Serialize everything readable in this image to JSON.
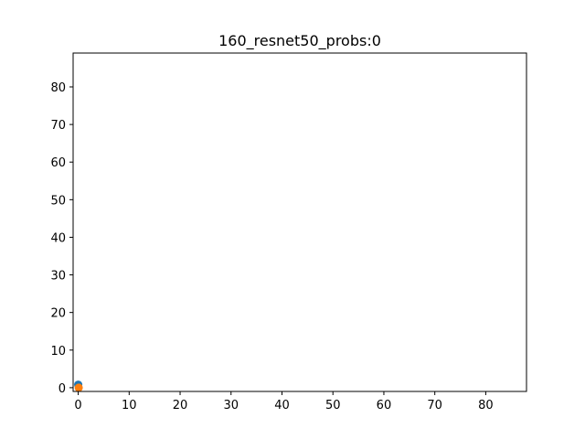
{
  "chart_data": {
    "type": "scatter",
    "title": "160_resnet50_probs:0",
    "xlabel": "",
    "ylabel": "",
    "xlim": [
      -1,
      88
    ],
    "ylim": [
      -1,
      89
    ],
    "xticks": [
      0,
      10,
      20,
      30,
      40,
      50,
      60,
      70,
      80
    ],
    "yticks": [
      0,
      10,
      20,
      30,
      40,
      50,
      60,
      70,
      80
    ],
    "grid": false,
    "series": [
      {
        "color": "#1f77b4",
        "points": [
          {
            "x": 0,
            "y": 0.8
          }
        ]
      },
      {
        "color": "#ff7f0e",
        "points": [
          {
            "x": 0.1,
            "y": 0
          }
        ]
      }
    ]
  }
}
